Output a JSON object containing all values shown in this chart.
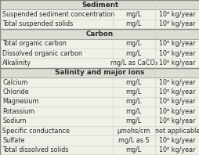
{
  "sections": [
    {
      "header": "Sediment",
      "rows": [
        [
          "Suspended sediment concentration",
          "mg/L",
          "10⁶ kg/year"
        ],
        [
          "Total suspended solids",
          "mg/L",
          "10⁶ kg/year"
        ]
      ]
    },
    {
      "header": "Carbon",
      "rows": [
        [
          "Total organic carbon",
          "mg/L",
          "10⁶ kg/year"
        ],
        [
          "Dissolved organic carbon",
          "mg/L",
          "10⁶ kg/year"
        ],
        [
          "Alkalinity",
          "mg/L as CaCO₃",
          "10⁶ kg/year"
        ]
      ]
    },
    {
      "header": "Salinity and major ions",
      "rows": [
        [
          "Calcium",
          "mg/L",
          "10⁶ kg/year"
        ],
        [
          "Chloride",
          "mg/L",
          "10⁶ kg/year"
        ],
        [
          "Magnesium",
          "mg/L",
          "10⁶ kg/year"
        ],
        [
          "Potassium",
          "mg/L",
          "10⁶ kg/year"
        ],
        [
          "Sodium",
          "mg/L",
          "10⁶ kg/year"
        ],
        [
          "Specific conductance",
          "μmohs/cm",
          "not applicable"
        ],
        [
          "Sulfate",
          "mg/L as S",
          "10⁶ kg/year"
        ],
        [
          "Total dissolved solids",
          "mg/L",
          "10⁶ kg/year"
        ]
      ]
    }
  ],
  "bg_color": "#f0efe8",
  "section_bg": "#dcdcd4",
  "text_color": "#2a2a2a",
  "font_size": 5.8,
  "header_font_size": 6.3
}
